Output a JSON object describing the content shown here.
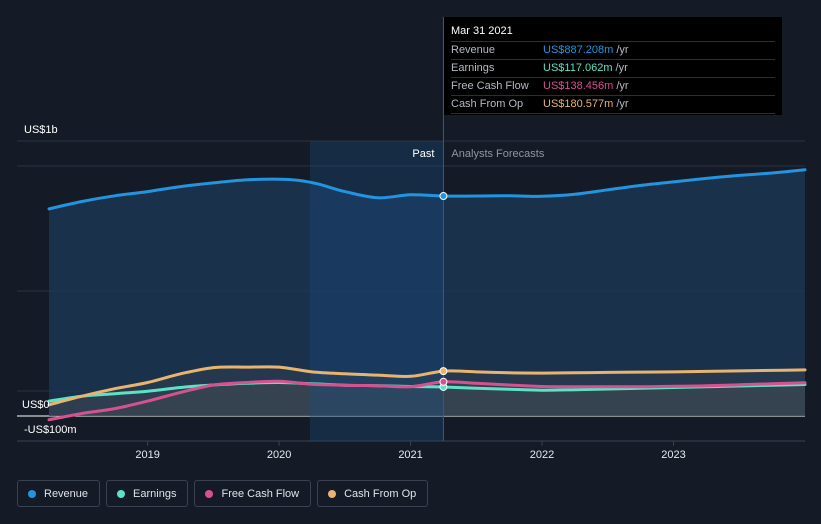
{
  "tooltip": {
    "date": "Mar 31 2021",
    "rows": [
      {
        "name": "Revenue",
        "value": "US$887.208m",
        "unit": "/yr"
      },
      {
        "name": "Earnings",
        "value": "US$117.062m",
        "unit": "/yr"
      },
      {
        "name": "Free Cash Flow",
        "value": "US$138.456m",
        "unit": "/yr"
      },
      {
        "name": "Cash From Op",
        "value": "US$180.577m",
        "unit": "/yr"
      }
    ]
  },
  "labels": {
    "past": "Past",
    "forecast": "Analysts Forecasts"
  },
  "legend": [
    {
      "name": "Revenue",
      "color": "#2394df"
    },
    {
      "name": "Earnings",
      "color": "#5ce2c5"
    },
    {
      "name": "Free Cash Flow",
      "color": "#d6528f"
    },
    {
      "name": "Cash From Op",
      "color": "#e8b470"
    }
  ],
  "chart_data": {
    "type": "line",
    "y_tick_labels": [
      "US$1b",
      "US$0",
      "-US$100m"
    ],
    "x_tick_labels": [
      "2019",
      "2020",
      "2021",
      "2022",
      "2023"
    ],
    "ylim": [
      -100,
      1000
    ],
    "xlim": [
      2018.25,
      2024.0
    ],
    "past_end": 2021.25,
    "series": [
      {
        "name": "Revenue",
        "color": "#2394df",
        "points": [
          [
            2018.25,
            835
          ],
          [
            2018.5,
            865
          ],
          [
            2018.75,
            888
          ],
          [
            2019.0,
            905
          ],
          [
            2019.25,
            925
          ],
          [
            2019.5,
            940
          ],
          [
            2019.75,
            952
          ],
          [
            2020.0,
            955
          ],
          [
            2020.15,
            950
          ],
          [
            2020.3,
            935
          ],
          [
            2020.5,
            905
          ],
          [
            2020.75,
            880
          ],
          [
            2021.0,
            892
          ],
          [
            2021.25,
            887
          ],
          [
            2021.5,
            887
          ],
          [
            2021.75,
            888
          ],
          [
            2022.0,
            886
          ],
          [
            2022.25,
            894
          ],
          [
            2022.5,
            912
          ],
          [
            2022.75,
            930
          ],
          [
            2023.0,
            944
          ],
          [
            2023.25,
            958
          ],
          [
            2023.5,
            970
          ],
          [
            2023.75,
            980
          ],
          [
            2024.0,
            993
          ]
        ]
      },
      {
        "name": "Earnings",
        "color": "#5ce2c5",
        "points": [
          [
            2018.25,
            60
          ],
          [
            2018.5,
            80
          ],
          [
            2018.75,
            90
          ],
          [
            2019.0,
            100
          ],
          [
            2019.25,
            115
          ],
          [
            2019.5,
            125
          ],
          [
            2019.75,
            132
          ],
          [
            2020.0,
            135
          ],
          [
            2020.25,
            130
          ],
          [
            2020.5,
            124
          ],
          [
            2020.75,
            122
          ],
          [
            2021.0,
            119
          ],
          [
            2021.25,
            117
          ],
          [
            2021.5,
            112
          ],
          [
            2021.75,
            108
          ],
          [
            2022.0,
            104
          ],
          [
            2022.25,
            106
          ],
          [
            2022.5,
            109
          ],
          [
            2022.75,
            112
          ],
          [
            2023.0,
            115
          ],
          [
            2023.25,
            118
          ],
          [
            2023.5,
            121
          ],
          [
            2023.75,
            124
          ],
          [
            2024.0,
            127
          ]
        ]
      },
      {
        "name": "Free Cash Flow",
        "color": "#d6528f",
        "points": [
          [
            2018.25,
            -15
          ],
          [
            2018.5,
            10
          ],
          [
            2018.75,
            30
          ],
          [
            2019.0,
            60
          ],
          [
            2019.25,
            95
          ],
          [
            2019.5,
            125
          ],
          [
            2019.75,
            135
          ],
          [
            2020.0,
            140
          ],
          [
            2020.25,
            128
          ],
          [
            2020.5,
            124
          ],
          [
            2020.75,
            122
          ],
          [
            2021.0,
            118
          ],
          [
            2021.25,
            138
          ],
          [
            2021.5,
            132
          ],
          [
            2021.75,
            125
          ],
          [
            2022.0,
            119
          ],
          [
            2022.25,
            118
          ],
          [
            2022.5,
            118
          ],
          [
            2022.75,
            118
          ],
          [
            2023.0,
            120
          ],
          [
            2023.25,
            122
          ],
          [
            2023.5,
            126
          ],
          [
            2023.75,
            130
          ],
          [
            2024.0,
            134
          ]
        ]
      },
      {
        "name": "Cash From Op",
        "color": "#e8b470",
        "points": [
          [
            2018.25,
            45
          ],
          [
            2018.5,
            80
          ],
          [
            2018.75,
            110
          ],
          [
            2019.0,
            135
          ],
          [
            2019.25,
            170
          ],
          [
            2019.5,
            195
          ],
          [
            2019.75,
            197
          ],
          [
            2020.0,
            197
          ],
          [
            2020.25,
            178
          ],
          [
            2020.5,
            170
          ],
          [
            2020.75,
            165
          ],
          [
            2021.0,
            160
          ],
          [
            2021.25,
            181
          ],
          [
            2021.5,
            178
          ],
          [
            2021.75,
            174
          ],
          [
            2022.0,
            173
          ],
          [
            2022.25,
            174
          ],
          [
            2022.5,
            176
          ],
          [
            2022.75,
            177
          ],
          [
            2023.0,
            178
          ],
          [
            2023.25,
            180
          ],
          [
            2023.5,
            182
          ],
          [
            2023.75,
            184
          ],
          [
            2024.0,
            186
          ]
        ]
      }
    ]
  }
}
